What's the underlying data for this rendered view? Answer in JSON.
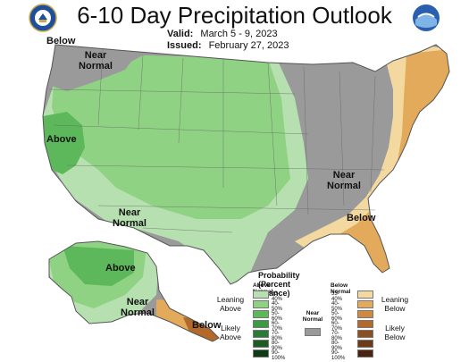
{
  "header": {
    "title": "6-10 Day Precipitation Outlook",
    "valid_label": "Valid:",
    "valid_value": "March 5 - 9, 2023",
    "issued_label": "Issued:",
    "issued_value": "February 27, 2023"
  },
  "map_labels": {
    "below_nw": "Below",
    "near_normal_nw": "Near Normal",
    "above_ca": "Above",
    "near_normal_sw": "Near Normal",
    "near_normal_ohio": "Near Normal",
    "below_se": "Below",
    "above_ak": "Above",
    "near_normal_ak": "Near Normal",
    "below_ak": "Below"
  },
  "legend": {
    "title": "Probability (Percent Chance)",
    "above_header": "Above Normal",
    "below_header": "Below Normal",
    "near_header": "Near Normal",
    "leaning_above": "Leaning Above",
    "likely_above": "Likely Above",
    "leaning_below": "Leaning Below",
    "likely_below": "Likely Below",
    "ranges": [
      "33-40%",
      "40-50%",
      "50-60%",
      "60-70%",
      "70-80%",
      "80-90%",
      "90-100%"
    ],
    "above_colors": [
      "#b6e0b0",
      "#8fd283",
      "#5cb85a",
      "#3c9a44",
      "#2a7b37",
      "#1c5b26",
      "#0e3a14"
    ],
    "below_colors": [
      "#f3d9a0",
      "#e2aa5a",
      "#d18a3d",
      "#b2692b",
      "#8c4f1f",
      "#6c3a17",
      "#4a2410"
    ],
    "near_color": "#9a9a9a"
  },
  "colors": {
    "above_light": "#b6e0b0",
    "above_mid": "#8fd283",
    "above_dark": "#5cb85a",
    "below_light": "#f3d9a0",
    "below_mid": "#e2aa5a",
    "below_dark": "#d18a3d",
    "near": "#9a9a9a"
  }
}
